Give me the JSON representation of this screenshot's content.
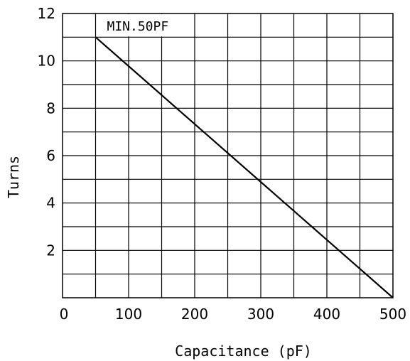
{
  "chart_data": {
    "type": "line",
    "xlabel": "Capacitance (pF)",
    "ylabel": "Turns",
    "xlim": [
      0,
      500
    ],
    "ylim": [
      0,
      12
    ],
    "x_ticks": [
      "0",
      "100",
      "200",
      "300",
      "400",
      "500"
    ],
    "y_ticks": [
      "2",
      "4",
      "6",
      "8",
      "10",
      "12"
    ],
    "grid": true,
    "x_grid_step": 50,
    "y_grid_step": 1,
    "annotation": "MIN.50PF",
    "series": [
      {
        "x": [
          50,
          500
        ],
        "y": [
          11,
          0
        ]
      }
    ]
  }
}
